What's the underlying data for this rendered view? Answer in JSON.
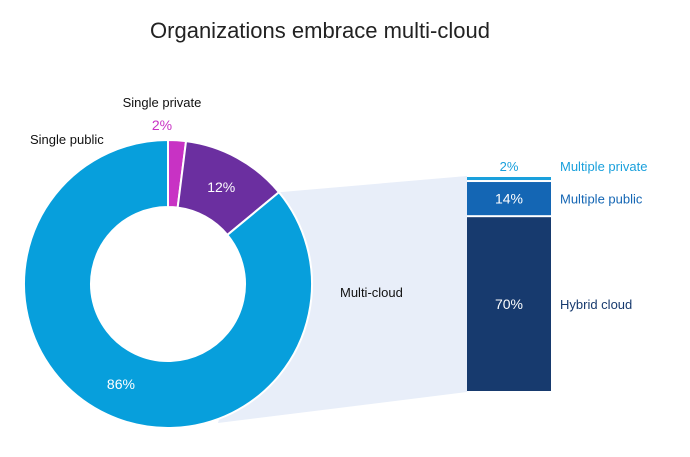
{
  "chart_data": {
    "type": "pie",
    "title": "Organizations embrace multi-cloud",
    "donut": {
      "categories": [
        "Multi-cloud",
        "Single public",
        "Single private"
      ],
      "values": [
        86,
        12,
        2
      ],
      "value_labels": [
        "86%",
        "12%",
        "2%"
      ],
      "colors": [
        "#079fdc",
        "#6b2fa0",
        "#c832c4"
      ]
    },
    "breakdown": {
      "type": "bar",
      "stacked": true,
      "categories": [
        "Hybrid cloud",
        "Multiple public",
        "Multiple private"
      ],
      "values": [
        70,
        14,
        2
      ],
      "value_labels": [
        "70%",
        "14%",
        "2%"
      ],
      "colors": [
        "#173a6e",
        "#1466b4",
        "#1aa0dc"
      ],
      "label_colors": [
        "#173a6e",
        "#1466b4",
        "#1aa0dc"
      ]
    },
    "connector_color": "#e8eef9"
  }
}
